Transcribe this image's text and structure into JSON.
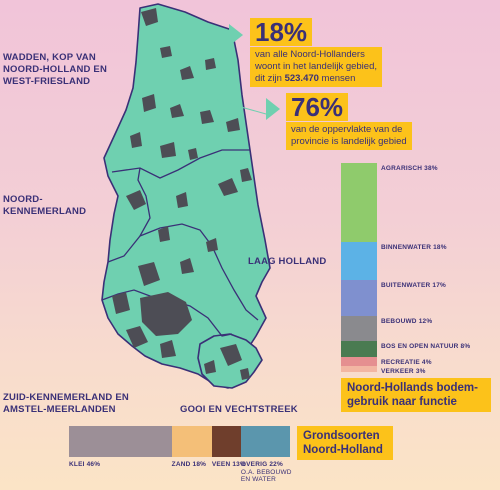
{
  "regions": {
    "wadden": [
      "WADDEN, KOP VAN",
      "NOORD-HOLLAND EN",
      "WEST-FRIESLAND"
    ],
    "noord_kennemerland": [
      "NOORD-",
      "KENNEMERLAND"
    ],
    "laag_holland": "LAAG HOLLAND",
    "zuid_kennemerland": [
      "ZUID-KENNEMERLAND EN",
      "AMSTEL-MEERLANDEN"
    ],
    "gooi": "GOOI EN VECHTSTREEK"
  },
  "callout_1": {
    "value": "18%",
    "line1": "van alle Noord-Hollanders",
    "line2": "woont in het landelijk gebied,",
    "line3_prefix": "dit zijn ",
    "line3_bold": "523.470",
    "line3_suffix": " mensen"
  },
  "callout_2": {
    "value": "76%",
    "line1": "van de oppervlakte van de",
    "line2": "provincie is landelijk gebied"
  },
  "colors": {
    "land": "#6fd0b0",
    "urban": "#4d4d55",
    "border": "#3a3077",
    "accent": "#fcc21a"
  },
  "bodemgebruik": {
    "title_line1": "Noord-Hollands bodem-",
    "title_line2": "gebruik naar functie",
    "segments": [
      {
        "label": "AGRARISCH 38%",
        "value": 38,
        "color": "#8fcb6c"
      },
      {
        "label": "BINNENWATER 18%",
        "value": 18,
        "color": "#5cb2e6"
      },
      {
        "label": "BUITENWATER 17%",
        "value": 17,
        "color": "#7f90cf"
      },
      {
        "label": "BEBOUWD 12%",
        "value": 12,
        "color": "#8a8a8e"
      },
      {
        "label": "BOS EN OPEN NATUUR 8%",
        "value": 8,
        "color": "#4a7b51"
      },
      {
        "label": "RECREATIE 4%",
        "value": 4,
        "color": "#e58f90"
      },
      {
        "label": "VERKEER 3%",
        "value": 3,
        "color": "#f2b6a3"
      }
    ]
  },
  "grondsoorten": {
    "title_line1": "Grondsoorten",
    "title_line2": "Noord-Holland",
    "segments": [
      {
        "label": "KLEI 46%",
        "value": 46,
        "color": "#9c8f97"
      },
      {
        "label": "ZAND 18%",
        "value": 18,
        "color": "#f4bf78"
      },
      {
        "label": "VEEN 13%",
        "value": 13,
        "color": "#6f3e2c"
      },
      {
        "label": "OVERIG 22%",
        "value": 22,
        "color": "#5b96ad",
        "sublabel_1": "O.A. BEBOUWD",
        "sublabel_2": "EN WATER"
      }
    ]
  }
}
